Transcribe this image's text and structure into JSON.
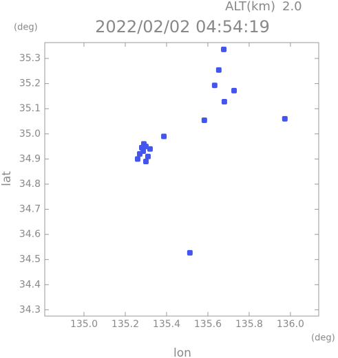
{
  "chart_data": {
    "type": "scatter",
    "title": "2022/02/02 04:54:19",
    "altitude_label": "ALT(km)",
    "altitude": 2.0,
    "xlabel": "lon",
    "ylabel": "lat",
    "xunit": "(deg)",
    "yunit": "(deg)",
    "x": [
      135.287,
      135.3,
      135.27,
      135.31,
      135.29,
      135.32,
      135.26,
      135.3,
      135.28,
      135.387,
      135.677,
      135.653,
      135.633,
      135.727,
      135.68,
      135.583,
      135.973,
      135.513
    ],
    "y": [
      34.931,
      34.95,
      34.92,
      34.91,
      34.96,
      34.94,
      34.9,
      34.89,
      34.945,
      34.99,
      35.336,
      35.254,
      35.193,
      35.172,
      35.128,
      35.054,
      35.06,
      34.527
    ],
    "color": "#4455ee",
    "xlim": [
      134.81,
      136.137
    ],
    "ylim": [
      34.275,
      35.363
    ],
    "xticks": [
      {
        "value": 135,
        "label": "135.0"
      },
      135.2,
      135.4,
      135.6,
      135.8,
      {
        "value": 136,
        "label": "136.0"
      }
    ],
    "yticks": [
      34.3,
      34.4,
      34.5,
      34.6,
      34.7,
      34.8,
      34.9,
      {
        "value": 35,
        "label": "35.0"
      },
      35.1,
      35.2,
      35.3
    ]
  }
}
